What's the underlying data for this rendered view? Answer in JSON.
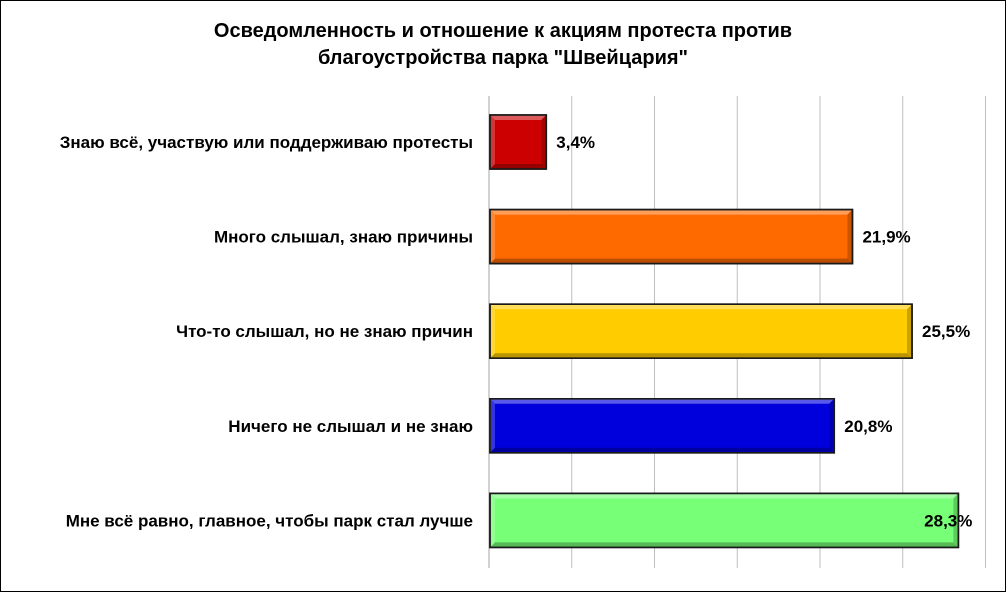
{
  "chart_data": {
    "type": "bar",
    "orientation": "horizontal",
    "title_line1": "Осведомленность и отношение к акциям протеста против",
    "title_line2": "благоустройства парка \"Швейцария\"",
    "categories": [
      "Знаю всё, участвую или поддерживаю протесты",
      "Много слышал, знаю причины",
      "Что-то слышал, но не знаю причин",
      "Ничего не слышал и не знаю",
      "Мне всё равно, главное, чтобы парк стал лучше"
    ],
    "values": [
      3.4,
      21.9,
      25.5,
      20.8,
      28.3
    ],
    "value_labels": [
      "3,4%",
      "21,9%",
      "25,5%",
      "20,8%",
      "28,3%"
    ],
    "bar_colors": [
      "#cc0000",
      "#ff6a00",
      "#ffcc00",
      "#0000dd",
      "#77ff77"
    ],
    "xlim": [
      0,
      30
    ],
    "grid": true,
    "legend": "none"
  }
}
